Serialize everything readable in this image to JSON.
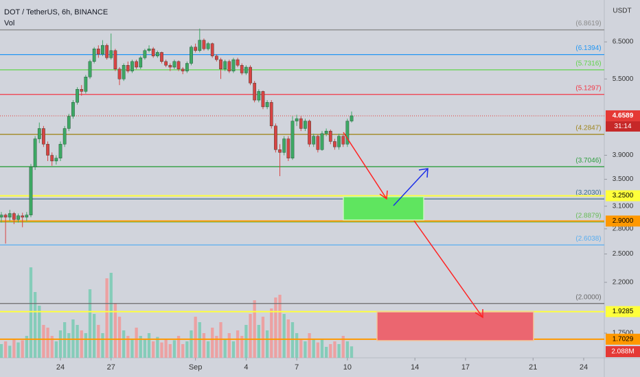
{
  "chart_data": {
    "type": "candlestick",
    "title": "DOT / TetherUS, 6h, BINANCE",
    "volume_title": "Vol",
    "unit": "USDT",
    "log_scale": true,
    "grid": false,
    "up_color": "#3da864",
    "down_color": "#d84343",
    "volume_up_color": "#7ccbb5",
    "volume_down_color": "#ee9b9b",
    "xlim": [
      20.42,
      56.22
    ],
    "xticks": [
      24,
      27,
      {
        "value": 32,
        "label": "Sep"
      },
      {
        "value": 35,
        "label": "4"
      },
      {
        "value": 38,
        "label": "7"
      },
      {
        "value": 41,
        "label": "10"
      },
      {
        "value": 45,
        "label": "14"
      },
      {
        "value": 48,
        "label": "17"
      },
      {
        "value": 52,
        "label": "21"
      },
      {
        "value": 55,
        "label": "24"
      }
    ],
    "ylim": [
      1.566,
      7.85
    ],
    "yticks": [
      {
        "value": 6.5,
        "label": "6.5000"
      },
      {
        "value": 5.5,
        "label": "5.5000"
      },
      {
        "value": 3.9,
        "label": "3.9000"
      },
      {
        "value": 3.5,
        "label": "3.5000"
      },
      {
        "value": 3.1,
        "label": "3.1000"
      },
      {
        "value": 2.8,
        "label": "2.8000"
      },
      {
        "value": 2.5,
        "label": "2.5000"
      },
      {
        "value": 2.2,
        "label": "2.2000"
      },
      {
        "value": 1.75,
        "label": "1.7500"
      }
    ],
    "vol_ylim": [
      0,
      25
    ],
    "x": [
      20.5,
      20.75,
      21,
      21.25,
      21.5,
      21.75,
      22,
      22.25,
      22.5,
      22.75,
      23,
      23.25,
      23.5,
      23.75,
      24,
      24.25,
      24.5,
      24.75,
      25,
      25.25,
      25.5,
      25.75,
      26,
      26.25,
      26.5,
      26.75,
      27,
      27.25,
      27.5,
      27.75,
      28,
      28.25,
      28.5,
      28.75,
      29,
      29.25,
      29.5,
      29.75,
      30,
      30.25,
      30.5,
      30.75,
      31,
      31.25,
      31.5,
      31.75,
      32,
      32.25,
      32.5,
      32.75,
      33,
      33.25,
      33.5,
      33.75,
      34,
      34.25,
      34.5,
      34.75,
      35,
      35.25,
      35.5,
      35.75,
      36,
      36.25,
      36.5,
      36.75,
      37,
      37.25,
      37.5,
      37.75,
      38,
      38.25,
      38.5,
      38.75,
      39,
      39.25,
      39.5,
      39.75,
      40,
      40.25,
      40.5,
      40.75,
      41,
      41.25
    ],
    "ohlc": [
      [
        2.95,
        3.02,
        2.88,
        2.98
      ],
      [
        2.98,
        3.0,
        2.62,
        2.95
      ],
      [
        2.95,
        3.05,
        2.9,
        3.0
      ],
      [
        3.0,
        3.02,
        2.86,
        2.92
      ],
      [
        2.92,
        3.0,
        2.88,
        2.97
      ],
      [
        2.97,
        3.01,
        2.82,
        2.95
      ],
      [
        2.95,
        3.02,
        2.9,
        2.98
      ],
      [
        2.98,
        3.75,
        2.95,
        3.7
      ],
      [
        3.7,
        4.25,
        3.65,
        4.2
      ],
      [
        4.2,
        4.52,
        4.12,
        4.4
      ],
      [
        4.4,
        4.45,
        4.05,
        4.1
      ],
      [
        4.1,
        4.15,
        3.8,
        3.9
      ],
      [
        3.9,
        3.95,
        3.72,
        3.8
      ],
      [
        3.8,
        3.9,
        3.74,
        3.85
      ],
      [
        3.85,
        4.15,
        3.8,
        4.1
      ],
      [
        4.1,
        4.45,
        4.05,
        4.4
      ],
      [
        4.4,
        4.7,
        4.35,
        4.65
      ],
      [
        4.65,
        5.0,
        4.6,
        4.95
      ],
      [
        4.95,
        5.3,
        4.9,
        5.25
      ],
      [
        5.25,
        5.35,
        5.1,
        5.2
      ],
      [
        5.2,
        5.6,
        5.15,
        5.55
      ],
      [
        5.55,
        6.0,
        5.5,
        5.95
      ],
      [
        5.95,
        6.35,
        5.9,
        6.3
      ],
      [
        6.3,
        6.4,
        6.05,
        6.15
      ],
      [
        6.15,
        6.55,
        6.1,
        6.4
      ],
      [
        6.4,
        6.45,
        6.0,
        6.05
      ],
      [
        6.05,
        6.75,
        6.0,
        6.25
      ],
      [
        6.25,
        6.3,
        5.7,
        5.75
      ],
      [
        5.75,
        5.8,
        5.35,
        5.5
      ],
      [
        5.5,
        5.9,
        5.45,
        5.85
      ],
      [
        5.85,
        5.95,
        5.65,
        5.7
      ],
      [
        5.7,
        6.0,
        5.65,
        5.95
      ],
      [
        5.95,
        6.0,
        5.75,
        5.8
      ],
      [
        5.8,
        6.1,
        5.75,
        6.05
      ],
      [
        6.05,
        6.3,
        6.0,
        6.25
      ],
      [
        6.25,
        6.4,
        6.2,
        6.3
      ],
      [
        6.3,
        6.35,
        6.05,
        6.1
      ],
      [
        6.1,
        6.25,
        6.05,
        6.2
      ],
      [
        6.2,
        6.22,
        5.9,
        5.95
      ],
      [
        5.95,
        6.0,
        5.8,
        5.85
      ],
      [
        5.85,
        5.9,
        5.7,
        5.8
      ],
      [
        5.8,
        6.0,
        5.75,
        5.95
      ],
      [
        5.95,
        5.98,
        5.7,
        5.75
      ],
      [
        5.75,
        5.8,
        5.62,
        5.7
      ],
      [
        5.7,
        5.95,
        5.65,
        5.9
      ],
      [
        5.9,
        6.4,
        5.85,
        6.35
      ],
      [
        6.35,
        6.45,
        6.2,
        6.25
      ],
      [
        6.25,
        6.9,
        6.2,
        6.55
      ],
      [
        6.55,
        6.6,
        6.25,
        6.3
      ],
      [
        6.3,
        6.5,
        6.25,
        6.45
      ],
      [
        6.45,
        6.48,
        6.05,
        6.1
      ],
      [
        6.1,
        6.15,
        5.95,
        6.0
      ],
      [
        6.0,
        6.05,
        5.5,
        5.75
      ],
      [
        5.75,
        6.0,
        5.7,
        5.95
      ],
      [
        5.95,
        6.0,
        5.65,
        5.7
      ],
      [
        5.7,
        6.05,
        5.65,
        6.0
      ],
      [
        6.0,
        6.05,
        5.8,
        5.85
      ],
      [
        5.85,
        5.9,
        5.6,
        5.65
      ],
      [
        5.65,
        5.85,
        5.6,
        5.8
      ],
      [
        5.8,
        5.85,
        5.35,
        5.4
      ],
      [
        5.4,
        5.45,
        4.95,
        5.0
      ],
      [
        5.0,
        5.25,
        4.95,
        5.2
      ],
      [
        5.2,
        5.22,
        4.8,
        4.85
      ],
      [
        4.85,
        5.0,
        4.8,
        4.95
      ],
      [
        4.95,
        5.0,
        4.4,
        4.45
      ],
      [
        4.45,
        4.5,
        3.95,
        4.0
      ],
      [
        4.0,
        4.1,
        3.55,
        3.95
      ],
      [
        3.95,
        4.25,
        3.9,
        4.2
      ],
      [
        4.2,
        4.25,
        3.8,
        3.85
      ],
      [
        3.85,
        4.65,
        3.82,
        4.55
      ],
      [
        4.55,
        4.68,
        4.45,
        4.6
      ],
      [
        4.6,
        4.65,
        4.35,
        4.4
      ],
      [
        4.4,
        4.6,
        4.35,
        4.55
      ],
      [
        4.55,
        4.58,
        4.05,
        4.1
      ],
      [
        4.1,
        4.3,
        4.05,
        4.25
      ],
      [
        4.25,
        4.28,
        3.95,
        4.0
      ],
      [
        4.0,
        4.35,
        3.98,
        4.3
      ],
      [
        4.3,
        4.4,
        4.25,
        4.35
      ],
      [
        4.35,
        4.38,
        4.1,
        4.15
      ],
      [
        4.15,
        4.2,
        4.0,
        4.05
      ],
      [
        4.05,
        4.3,
        4.0,
        4.25
      ],
      [
        4.25,
        4.28,
        4.05,
        4.1
      ],
      [
        4.1,
        4.6,
        4.05,
        4.55
      ],
      [
        4.55,
        4.75,
        4.52,
        4.6589
      ]
    ],
    "volume": [
      2.5,
      3.0,
      2.2,
      3.5,
      2.8,
      3.2,
      4.0,
      16.5,
      12.0,
      9.5,
      6.0,
      5.5,
      4.0,
      3.0,
      5.0,
      6.5,
      4.5,
      7.0,
      6.0,
      5.0,
      4.5,
      12.5,
      8.0,
      6.0,
      4.5,
      14.5,
      15.5,
      10.0,
      7.5,
      5.0,
      4.0,
      3.5,
      5.5,
      4.0,
      3.5,
      4.5,
      3.0,
      3.8,
      2.8,
      3.5,
      2.5,
      3.2,
      4.0,
      2.5,
      3.0,
      5.0,
      7.5,
      6.5,
      4.5,
      3.0,
      5.5,
      4.0,
      6.5,
      3.5,
      4.5,
      3.0,
      5.0,
      4.0,
      6.0,
      8.0,
      10.5,
      6.0,
      7.5,
      5.0,
      9.0,
      11.0,
      11.5,
      8.0,
      7.0,
      6.5,
      4.5,
      3.5,
      3.0,
      4.5,
      3.5,
      2.8,
      3.5,
      2.0,
      2.5,
      3.0,
      2.5,
      4.0,
      3.0,
      2.088
    ],
    "volume_last_label": "2.088M",
    "countdown": "31:14",
    "last_price_color": "#e53935",
    "levels": [
      {
        "value": 6.8619,
        "label": "(6.8619)",
        "color": "#8a8a8a"
      },
      {
        "value": 6.1394,
        "label": "(6.1394)",
        "color": "#2196f3"
      },
      {
        "value": 5.7316,
        "label": "(5.7316)",
        "color": "#5fd34a"
      },
      {
        "value": 5.1297,
        "label": "(5.1297)",
        "color": "#f23645"
      },
      {
        "value": 4.2847,
        "label": "(4.2847)",
        "color": "#a0861e"
      },
      {
        "value": 3.7046,
        "label": "(3.7046)",
        "color": "#2e9e3e"
      },
      {
        "value": 3.203,
        "label": "(3.2030)",
        "color": "#3d6e8c"
      },
      {
        "value": 2.8879,
        "label": "(2.8879)",
        "color": "#66bb55"
      },
      {
        "value": 2.6038,
        "label": "(2.6038)",
        "color": "#5aaef0"
      },
      {
        "value": 2.0,
        "label": "(2.0000)",
        "color": "#6b6b6b"
      }
    ],
    "tags": [
      {
        "value": 3.25,
        "label": "3.2500",
        "color": "#ffff3b"
      },
      {
        "value": 2.9,
        "label": "2.9000",
        "color": "#ff9800"
      },
      {
        "value": 1.9285,
        "label": "1.9285",
        "color": "#ffff3b"
      },
      {
        "value": 1.7029,
        "label": "1.7029",
        "color": "#ff9800"
      }
    ]
  }
}
